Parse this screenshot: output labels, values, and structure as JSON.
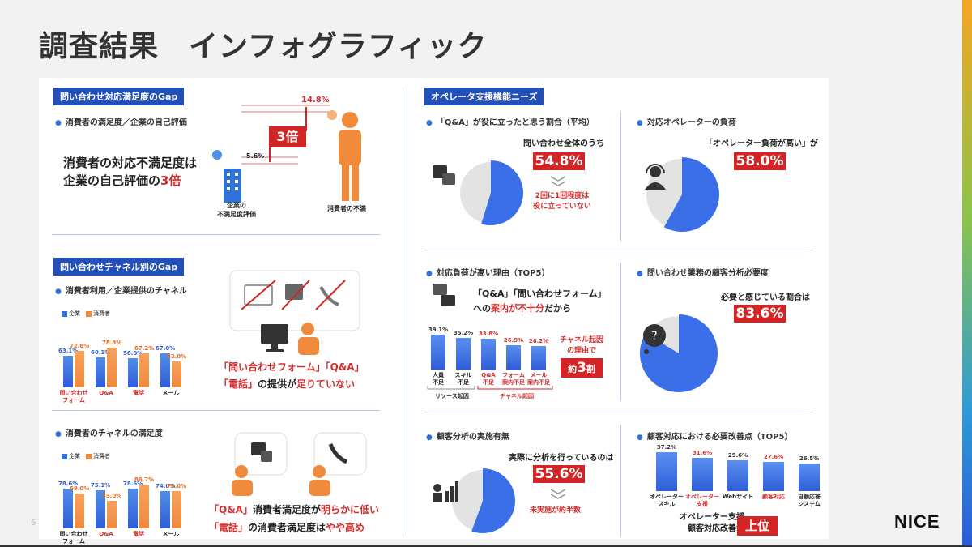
{
  "page_title": "調査結果　インフォグラフィック",
  "logo": "NICE",
  "page_number": "6",
  "colors": {
    "blue": "#2350b8",
    "red": "#d32525",
    "orange": "#f08a3c",
    "pie_blue": "#3b6fe8",
    "grey": "#e3e3e3"
  },
  "left": {
    "sec1": {
      "tag": "問い合わせ対応満足度のGap",
      "sub": "消費者の満足度／企業の自己評価",
      "statement_line1": "消費者の対応不満足度は",
      "statement_line2_pre": "企業の自己評価の",
      "statement_line2_hl": "3倍",
      "multiplier": "3倍",
      "high_value": "14.8%",
      "low_value": "5.6%",
      "company_label_1": "企業の",
      "company_label_2": "不満足度評価",
      "consumer_label": "消費者の不満"
    },
    "sec2": {
      "tag": "問い合わせチャネル別のGap",
      "sub": "消費者利用／企業提供のチャネル",
      "legend_company": "企業",
      "legend_consumer": "消費者",
      "conclusion_1a": "「問い合わせフォーム」「Q&A」",
      "conclusion_2a": "「電話」",
      "conclusion_2b": "の提供が",
      "conclusion_2c": "足りていない"
    },
    "sec3": {
      "sub": "消費者のチャネルの満足度",
      "legend_company": "企業",
      "legend_consumer": "消費者",
      "conclusion_1a": "「Q&A」",
      "conclusion_1b": "消費者満足度が",
      "conclusion_1c": "明らかに低い",
      "conclusion_2a": "「電話」",
      "conclusion_2b": "の消費者満足度は",
      "conclusion_2c": "やや高め"
    }
  },
  "right": {
    "tag": "オペレータ支援機能ニーズ",
    "qa": {
      "sub": "「Q&A」が役に立ったと思う割合（平均）",
      "caption": "問い合わせ全体のうち",
      "value": "54.8%",
      "note_1": "2回に1回程度は",
      "note_2": "役に立っていない"
    },
    "load": {
      "sub": "対応オペレーターの負荷",
      "caption": "「オペレーター負荷が高い」が",
      "value": "58.0%"
    },
    "reasons": {
      "sub": "対応負荷が高い理由（TOP5）",
      "caption_1": "「Q&A」「問い合わせフォーム」",
      "caption_2a": "への",
      "caption_2b": "案内が",
      "caption_2c": "不十分",
      "caption_2d": "だから",
      "group_1": "リソース起因",
      "group_2": "チャネル起因",
      "side_1": "チャネル起因",
      "side_2": "の理由で",
      "badge_pre": "約",
      "badge_num": "3",
      "badge_post": "割"
    },
    "necessity": {
      "sub": "問い合わせ業務の顧客分析必要度",
      "caption": "必要と感じている割合は",
      "value": "83.6%"
    },
    "analysis": {
      "sub": "顧客分析の実施有無",
      "caption": "実際に分析を行っているのは",
      "value": "55.6%",
      "note": "未実施が約半数"
    },
    "improve": {
      "sub": "顧客対応における必要改善点（TOP5）",
      "footer_1": "オペレーター支援、",
      "footer_2": "顧客対応改善が",
      "badge": "上位"
    }
  },
  "chart_data": [
    {
      "type": "bar",
      "title": "消費者利用／企業提供のチャネル",
      "categories": [
        "問い合わせ\nフォーム",
        "Q&A",
        "電話",
        "メール"
      ],
      "series": [
        {
          "name": "企業",
          "values": [
            63.1,
            60.1,
            58.0,
            67.0
          ]
        },
        {
          "name": "消費者",
          "values": [
            72.8,
            78.8,
            67.2,
            52.0
          ]
        }
      ],
      "labels": [
        [
          "63.1%",
          "60.1%",
          "58.0%",
          "67.0%"
        ],
        [
          "72.8%",
          "78.8%",
          "67.2%",
          "52.0%"
        ]
      ],
      "ylim": [
        0,
        100
      ]
    },
    {
      "type": "bar",
      "title": "消費者のチャネルの満足度",
      "categories": [
        "問い合わせ\nフォーム",
        "Q&A",
        "電話",
        "メール"
      ],
      "series": [
        {
          "name": "企業",
          "values": [
            78.6,
            75.1,
            78.6,
            74.0
          ]
        },
        {
          "name": "消費者",
          "values": [
            69.0,
            55.0,
            86.7,
            75.0
          ]
        }
      ],
      "labels": [
        [
          "78.6%",
          "75.1%",
          "78.6%",
          "74.0%"
        ],
        [
          "69.0%",
          "55.0%",
          "86.7%",
          "75.0%"
        ]
      ],
      "ylim": [
        0,
        100
      ]
    },
    {
      "type": "bar",
      "title": "対応負荷が高い理由（TOP5）",
      "categories": [
        "人員\n不足",
        "スキル\n不足",
        "Q&A\n不足",
        "フォーム\n案内不足",
        "メール\n案内不足"
      ],
      "values": [
        39.1,
        35.2,
        33.8,
        26.9,
        26.2
      ],
      "labels": [
        "39.1%",
        "35.2%",
        "33.8%",
        "26.9%",
        "26.2%"
      ],
      "ylim": [
        0,
        45
      ]
    },
    {
      "type": "bar",
      "title": "顧客対応における必要改善点（TOP5）",
      "categories": [
        "オペレーター\nスキル",
        "オペレーター\n支援",
        "Webサイト",
        "顧客対応",
        "自動応答\nシステム"
      ],
      "values": [
        37.2,
        31.6,
        29.6,
        27.6,
        26.5
      ],
      "labels": [
        "37.2%",
        "31.6%",
        "29.6%",
        "27.6%",
        "26.5%"
      ],
      "ylim": [
        0,
        45
      ]
    },
    {
      "type": "pie",
      "title": "「Q&A」が役に立ったと思う割合（平均）",
      "values": [
        54.8,
        45.2
      ]
    },
    {
      "type": "pie",
      "title": "対応オペレーターの負荷",
      "values": [
        58.0,
        42.0
      ]
    },
    {
      "type": "pie",
      "title": "問い合わせ業務の顧客分析必要度",
      "values": [
        83.6,
        16.4
      ]
    },
    {
      "type": "pie",
      "title": "顧客分析の実施有無",
      "values": [
        55.6,
        44.4
      ]
    }
  ]
}
